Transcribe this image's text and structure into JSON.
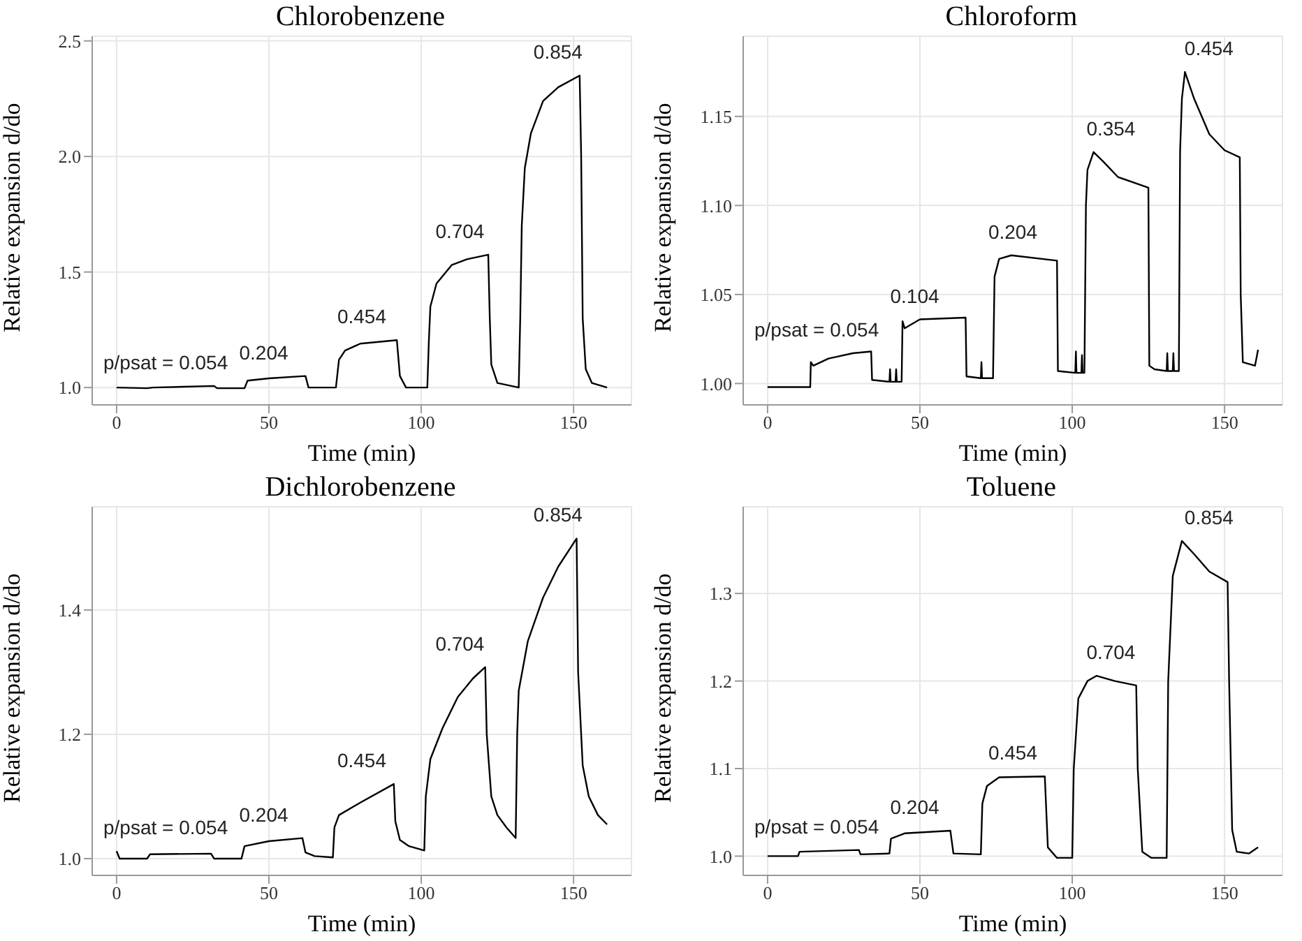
{
  "chart_data": [
    {
      "type": "line",
      "title": "Chlorobenzene",
      "xlabel": "Time (min)",
      "ylabel": "Relative expansion d/do",
      "xlim": [
        -8,
        169
      ],
      "ylim": [
        0.925,
        2.52
      ],
      "xticks": [
        0,
        50,
        100,
        150
      ],
      "yticks": [
        {
          "value": 1,
          "label": "1.0"
        },
        1.5,
        {
          "value": 2,
          "label": "2.0"
        },
        2.5
      ],
      "grid": true,
      "marker": "none",
      "line_style": "solid",
      "series": [
        {
          "color": "#000000",
          "x": [
            0,
            10,
            12,
            32,
            33,
            42,
            43,
            50,
            62,
            63,
            72,
            73,
            75,
            80,
            92,
            93,
            95,
            102,
            102.5,
            103,
            105,
            110,
            115,
            122,
            122.5,
            123,
            125,
            132,
            132.5,
            133,
            134,
            136,
            140,
            145,
            152,
            152.5,
            153,
            154,
            156,
            161
          ],
          "values": [
            1.0,
            0.997,
            1.0,
            1.007,
            0.997,
            0.997,
            1.03,
            1.04,
            1.05,
            1.0,
            1.0,
            1.12,
            1.16,
            1.19,
            1.205,
            1.05,
            1.0,
            1.0,
            1.2,
            1.35,
            1.45,
            1.53,
            1.555,
            1.575,
            1.3,
            1.1,
            1.02,
            1.0,
            1.3,
            1.7,
            1.95,
            2.1,
            2.24,
            2.3,
            2.35,
            2.0,
            1.3,
            1.08,
            1.02,
            1.0
          ]
        }
      ],
      "annotations": [
        "p/psat = 0.054",
        "0.204",
        "0.454",
        "0.704",
        "0.854"
      ]
    },
    {
      "type": "line",
      "title": "Chloroform",
      "xlabel": "Time (min)",
      "ylabel": "Relative expansion d/do",
      "xlim": [
        -8,
        169
      ],
      "ylim": [
        0.988,
        1.195
      ],
      "xticks": [
        0,
        50,
        100,
        150
      ],
      "yticks": [
        {
          "value": 1,
          "label": "1.00"
        },
        1.05,
        {
          "value": 1.1,
          "label": "1.10"
        },
        1.15
      ],
      "grid": true,
      "marker": "none",
      "line_style": "solid",
      "series": [
        {
          "color": "#000000",
          "x": [
            0,
            14,
            14.2,
            15,
            20,
            28,
            34,
            34.3,
            40,
            40.2,
            40.4,
            42,
            42.2,
            42.4,
            44,
            44.3,
            45,
            50,
            65,
            65.3,
            70,
            70.2,
            70.4,
            74,
            74.5,
            76,
            80,
            95,
            95.3,
            101,
            101.2,
            101.4,
            103,
            103.2,
            103.4,
            104,
            104.5,
            105,
            107,
            110,
            115,
            125,
            125.3,
            127,
            131,
            131.2,
            131.4,
            133,
            133.2,
            133.4,
            135,
            135.4,
            136,
            137,
            140,
            145,
            150,
            155,
            155.3,
            156,
            160,
            161
          ],
          "values": [
            0.998,
            0.998,
            1.012,
            1.01,
            1.014,
            1.017,
            1.018,
            1.002,
            1.001,
            1.008,
            1.001,
            1.001,
            1.008,
            1.001,
            1.001,
            1.035,
            1.031,
            1.036,
            1.037,
            1.004,
            1.003,
            1.012,
            1.003,
            1.003,
            1.06,
            1.07,
            1.072,
            1.069,
            1.007,
            1.006,
            1.018,
            1.006,
            1.006,
            1.016,
            1.006,
            1.006,
            1.1,
            1.12,
            1.13,
            1.125,
            1.116,
            1.11,
            1.01,
            1.008,
            1.007,
            1.017,
            1.007,
            1.007,
            1.017,
            1.007,
            1.007,
            1.13,
            1.16,
            1.175,
            1.16,
            1.14,
            1.131,
            1.127,
            1.05,
            1.012,
            1.01,
            1.019
          ]
        }
      ],
      "annotations": [
        "p/psat = 0.054",
        "0.104",
        "0.204",
        "0.354",
        "0.454"
      ]
    },
    {
      "type": "line",
      "title": "Dichlorobenzene",
      "xlabel": "Time (min)",
      "ylabel": "Relative expansion d/do",
      "xlim": [
        -8,
        169
      ],
      "ylim": [
        0.973,
        1.566
      ],
      "xticks": [
        0,
        50,
        100,
        150
      ],
      "yticks": [
        {
          "value": 1,
          "label": "1.0"
        },
        1.2,
        1.4
      ],
      "grid": true,
      "marker": "none",
      "line_style": "solid",
      "series": [
        {
          "color": "#000000",
          "x": [
            0,
            1,
            10,
            11,
            31,
            32,
            41,
            42,
            50,
            61,
            62,
            65,
            71,
            71.5,
            73,
            80,
            91,
            91.5,
            93,
            96,
            101,
            101.5,
            103,
            107,
            112,
            117,
            121,
            121.5,
            123,
            125,
            128,
            131,
            131.5,
            132,
            135,
            140,
            145,
            151,
            151.5,
            153,
            155,
            158,
            161
          ],
          "values": [
            1.012,
            1.0,
            1.0,
            1.007,
            1.008,
            1.0,
            1.0,
            1.02,
            1.028,
            1.033,
            1.01,
            1.004,
            1.002,
            1.05,
            1.07,
            1.09,
            1.12,
            1.06,
            1.03,
            1.02,
            1.013,
            1.1,
            1.16,
            1.21,
            1.26,
            1.29,
            1.308,
            1.2,
            1.1,
            1.07,
            1.05,
            1.033,
            1.2,
            1.27,
            1.35,
            1.42,
            1.47,
            1.515,
            1.3,
            1.15,
            1.1,
            1.07,
            1.055
          ]
        }
      ],
      "annotations": [
        "p/psat = 0.054",
        "0.204",
        "0.454",
        "0.704",
        "0.854"
      ]
    },
    {
      "type": "line",
      "title": "Toluene",
      "xlabel": "Time (min)",
      "ylabel": "Relative expansion d/do",
      "xlim": [
        -8,
        169
      ],
      "ylim": [
        0.978,
        1.399
      ],
      "xticks": [
        0,
        50,
        100,
        150
      ],
      "yticks": [
        {
          "value": 1,
          "label": "1.0"
        },
        1.1,
        1.2,
        1.3
      ],
      "grid": true,
      "marker": "none",
      "line_style": "solid",
      "series": [
        {
          "color": "#000000",
          "x": [
            0,
            10,
            10.5,
            30,
            30.5,
            40,
            40.5,
            45,
            60,
            61,
            70,
            70.5,
            72,
            76,
            91,
            92,
            95,
            100,
            100.5,
            102,
            105,
            108,
            114,
            121,
            121.5,
            123,
            126,
            131,
            131.5,
            133,
            136,
            140,
            145,
            151,
            151.5,
            152.5,
            154,
            158,
            161
          ],
          "values": [
            1.0,
            1.0,
            1.005,
            1.007,
            1.002,
            1.003,
            1.02,
            1.026,
            1.029,
            1.003,
            1.002,
            1.06,
            1.08,
            1.09,
            1.091,
            1.01,
            0.998,
            0.998,
            1.1,
            1.18,
            1.2,
            1.206,
            1.2,
            1.195,
            1.1,
            1.005,
            0.998,
            0.998,
            1.2,
            1.32,
            1.36,
            1.345,
            1.325,
            1.313,
            1.2,
            1.03,
            1.005,
            1.003,
            1.01
          ]
        }
      ],
      "annotations": [
        "p/psat = 0.054",
        "0.204",
        "0.454",
        "0.704",
        "0.854"
      ]
    }
  ]
}
